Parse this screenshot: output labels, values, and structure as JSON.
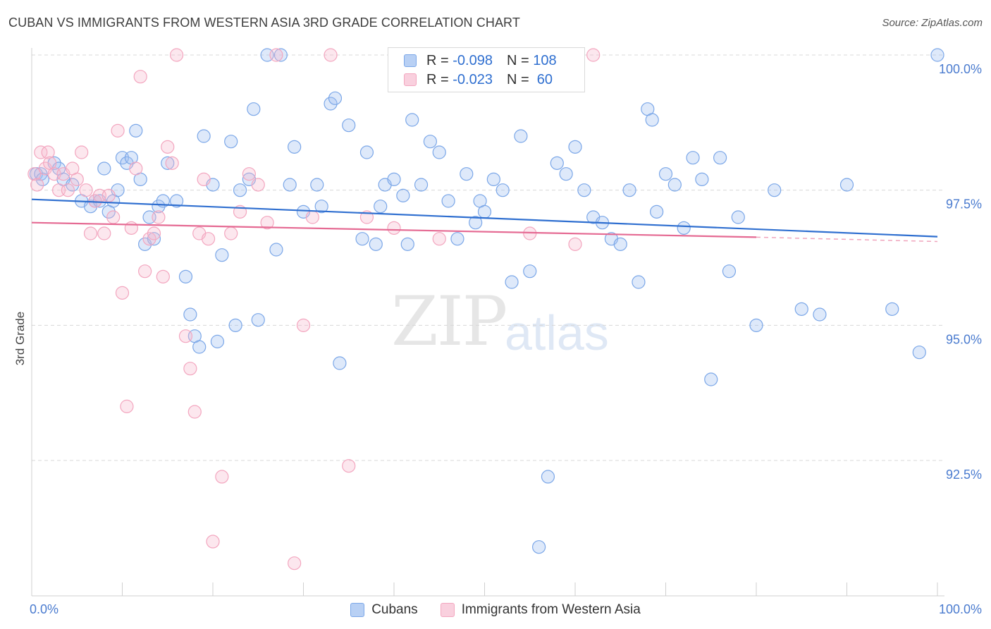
{
  "title": "CUBAN VS IMMIGRANTS FROM WESTERN ASIA 3RD GRADE CORRELATION CHART",
  "source": "Source: ZipAtlas.com",
  "watermark": {
    "part1": "ZIP",
    "part2": "atlas"
  },
  "legend": {
    "rows": [
      {
        "r_label": "R =",
        "r_value": "-0.098",
        "n_label": "N =",
        "n_value": "108",
        "color": "#7ba7e8"
      },
      {
        "r_label": "R =",
        "r_value": "-0.023",
        "n_label": "N =",
        "n_value": " 60",
        "color": "#f3a6bf"
      }
    ]
  },
  "bottom_legend": {
    "cubans": "Cubans",
    "immigrants": "Immigrants from Western Asia"
  },
  "chart_data": {
    "type": "scatter",
    "title": "CUBAN VS IMMIGRANTS FROM WESTERN ASIA 3RD GRADE CORRELATION CHART",
    "xlabel": "",
    "ylabel": "3rd Grade",
    "xlim": [
      0,
      100
    ],
    "ylim": [
      90.2,
      100.4
    ],
    "x_tick_labels": [
      "0.0%",
      "100.0%"
    ],
    "y_ticks": [
      {
        "value": 100.0,
        "label": "100.0%"
      },
      {
        "value": 97.5,
        "label": "97.5%"
      },
      {
        "value": 95.0,
        "label": "95.0%"
      },
      {
        "value": 92.5,
        "label": "92.5%"
      }
    ],
    "grid": "horizontal dashed",
    "legend_position": "top-center",
    "series": [
      {
        "name": "Cubans",
        "color": "#7ba7e8",
        "trend": {
          "x": [
            0,
            100
          ],
          "y": [
            97.33,
            96.64
          ]
        },
        "points": [
          [
            0.5,
            97.8
          ],
          [
            1.0,
            97.8
          ],
          [
            1.2,
            97.7
          ],
          [
            2.5,
            98.0
          ],
          [
            3.0,
            97.9
          ],
          [
            3.5,
            97.7
          ],
          [
            4.5,
            97.6
          ],
          [
            5.5,
            97.3
          ],
          [
            6.5,
            97.2
          ],
          [
            7.0,
            97.3
          ],
          [
            7.5,
            97.3
          ],
          [
            8.0,
            97.9
          ],
          [
            8.5,
            97.1
          ],
          [
            9.0,
            97.3
          ],
          [
            9.5,
            97.5
          ],
          [
            10.0,
            98.1
          ],
          [
            10.5,
            98.0
          ],
          [
            11.0,
            98.1
          ],
          [
            11.5,
            98.6
          ],
          [
            12.0,
            97.7
          ],
          [
            12.5,
            96.5
          ],
          [
            13.5,
            96.6
          ],
          [
            13.0,
            97.0
          ],
          [
            14.0,
            97.2
          ],
          [
            14.5,
            97.3
          ],
          [
            15.0,
            98.0
          ],
          [
            16.0,
            97.3
          ],
          [
            17.0,
            95.9
          ],
          [
            17.5,
            95.2
          ],
          [
            18.0,
            94.8
          ],
          [
            18.5,
            94.6
          ],
          [
            19.0,
            98.5
          ],
          [
            20.0,
            97.6
          ],
          [
            20.5,
            94.7
          ],
          [
            21.0,
            96.3
          ],
          [
            22.0,
            98.4
          ],
          [
            22.5,
            95.0
          ],
          [
            23.0,
            97.5
          ],
          [
            24.0,
            97.7
          ],
          [
            24.5,
            99.0
          ],
          [
            25.0,
            95.1
          ],
          [
            26.0,
            100.0
          ],
          [
            27.0,
            96.4
          ],
          [
            27.5,
            100.0
          ],
          [
            28.5,
            97.6
          ],
          [
            29.0,
            98.3
          ],
          [
            30.0,
            97.1
          ],
          [
            31.5,
            97.6
          ],
          [
            32.0,
            97.2
          ],
          [
            33.0,
            99.1
          ],
          [
            33.5,
            99.2
          ],
          [
            34.0,
            94.3
          ],
          [
            35.0,
            98.7
          ],
          [
            36.5,
            96.6
          ],
          [
            37.0,
            98.2
          ],
          [
            38.0,
            96.5
          ],
          [
            38.5,
            97.2
          ],
          [
            39.0,
            97.6
          ],
          [
            40.0,
            97.7
          ],
          [
            41.0,
            97.4
          ],
          [
            41.5,
            96.5
          ],
          [
            42.0,
            98.8
          ],
          [
            43.0,
            97.6
          ],
          [
            44.0,
            98.4
          ],
          [
            45.0,
            98.2
          ],
          [
            46.0,
            97.3
          ],
          [
            47.0,
            96.6
          ],
          [
            48.0,
            97.8
          ],
          [
            49.0,
            96.9
          ],
          [
            49.5,
            97.3
          ],
          [
            50.0,
            97.1
          ],
          [
            51.0,
            97.7
          ],
          [
            52.0,
            97.5
          ],
          [
            53.0,
            95.8
          ],
          [
            54.0,
            98.5
          ],
          [
            55.0,
            96.0
          ],
          [
            56.0,
            90.9
          ],
          [
            57.0,
            92.2
          ],
          [
            58.0,
            98.0
          ],
          [
            59.0,
            97.8
          ],
          [
            60.0,
            98.3
          ],
          [
            61.0,
            97.5
          ],
          [
            62.0,
            97.0
          ],
          [
            63.0,
            96.9
          ],
          [
            64.0,
            96.6
          ],
          [
            65.0,
            96.5
          ],
          [
            66.0,
            97.5
          ],
          [
            67.0,
            95.8
          ],
          [
            68.0,
            99.0
          ],
          [
            68.5,
            98.8
          ],
          [
            69.0,
            97.1
          ],
          [
            70.0,
            97.8
          ],
          [
            71.0,
            97.6
          ],
          [
            72.0,
            96.8
          ],
          [
            73.0,
            98.1
          ],
          [
            74.0,
            97.7
          ],
          [
            75.0,
            94.0
          ],
          [
            76.0,
            98.1
          ],
          [
            77.0,
            96.0
          ],
          [
            78.0,
            97.0
          ],
          [
            80.0,
            95.0
          ],
          [
            82.0,
            97.5
          ],
          [
            85.0,
            95.3
          ],
          [
            87.0,
            95.2
          ],
          [
            90.0,
            97.6
          ],
          [
            95.0,
            95.3
          ],
          [
            98.0,
            94.5
          ],
          [
            100.0,
            100.0
          ]
        ]
      },
      {
        "name": "Immigrants from Western Asia",
        "color": "#f3a6bf",
        "trend": {
          "x": [
            0,
            80
          ],
          "y": [
            96.9,
            96.63
          ]
        },
        "trend_dashed": {
          "x": [
            80,
            100
          ],
          "y": [
            96.63,
            96.55
          ]
        },
        "points": [
          [
            0.3,
            97.8
          ],
          [
            0.6,
            97.6
          ],
          [
            1.0,
            98.2
          ],
          [
            1.5,
            97.9
          ],
          [
            1.8,
            98.2
          ],
          [
            2.0,
            98.0
          ],
          [
            2.5,
            97.8
          ],
          [
            3.0,
            97.5
          ],
          [
            3.5,
            97.8
          ],
          [
            4.0,
            97.5
          ],
          [
            4.5,
            97.9
          ],
          [
            5.0,
            97.7
          ],
          [
            5.5,
            98.2
          ],
          [
            6.0,
            97.5
          ],
          [
            6.5,
            96.7
          ],
          [
            7.0,
            97.3
          ],
          [
            7.5,
            97.4
          ],
          [
            8.0,
            96.7
          ],
          [
            8.5,
            97.4
          ],
          [
            9.0,
            97.0
          ],
          [
            9.5,
            98.6
          ],
          [
            10.0,
            95.6
          ],
          [
            10.5,
            93.5
          ],
          [
            11.0,
            96.8
          ],
          [
            11.5,
            97.9
          ],
          [
            12.0,
            99.6
          ],
          [
            12.5,
            96.0
          ],
          [
            13.0,
            96.6
          ],
          [
            13.5,
            96.7
          ],
          [
            14.0,
            97.0
          ],
          [
            14.5,
            95.9
          ],
          [
            15.0,
            98.3
          ],
          [
            15.5,
            98.0
          ],
          [
            16.0,
            100.0
          ],
          [
            17.0,
            94.8
          ],
          [
            17.5,
            94.2
          ],
          [
            18.0,
            93.4
          ],
          [
            18.5,
            96.7
          ],
          [
            19.0,
            97.7
          ],
          [
            19.5,
            96.6
          ],
          [
            20.0,
            91.0
          ],
          [
            21.0,
            92.2
          ],
          [
            22.0,
            96.7
          ],
          [
            23.0,
            97.1
          ],
          [
            24.0,
            97.8
          ],
          [
            25.0,
            97.6
          ],
          [
            26.0,
            96.9
          ],
          [
            27.0,
            100.0
          ],
          [
            29.0,
            90.6
          ],
          [
            30.0,
            95.0
          ],
          [
            31.0,
            97.0
          ],
          [
            33.0,
            100.0
          ],
          [
            35.0,
            92.4
          ],
          [
            37.0,
            97.0
          ],
          [
            40.0,
            96.8
          ],
          [
            45.0,
            96.6
          ],
          [
            50.0,
            100.0
          ],
          [
            55.0,
            96.7
          ],
          [
            60.0,
            96.5
          ],
          [
            62.0,
            100.0
          ]
        ]
      }
    ]
  }
}
